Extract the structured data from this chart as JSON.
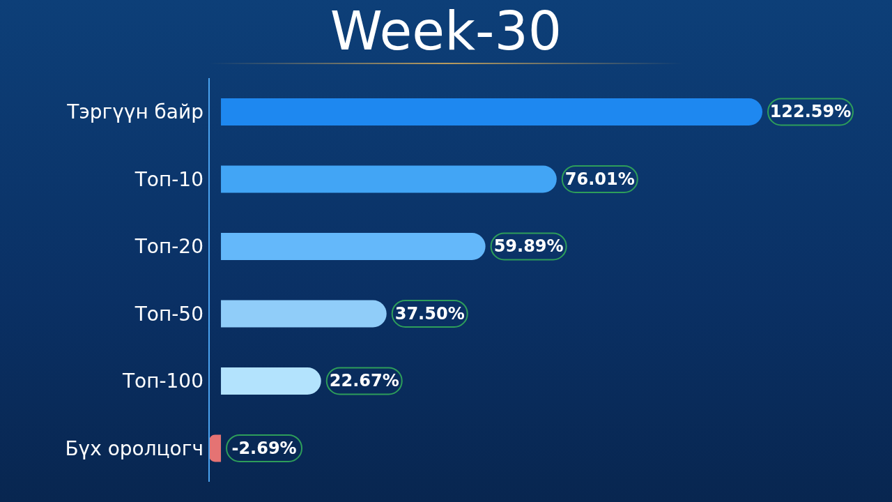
{
  "chart_data": {
    "type": "bar",
    "orientation": "horizontal",
    "title": "Week-30",
    "categories": [
      "Тэргүүн байр",
      "Топ-10",
      "Топ-20",
      "Топ-50",
      "Топ-100",
      "Бүх оролцогч"
    ],
    "values": [
      122.59,
      76.01,
      59.89,
      37.5,
      22.67,
      -2.69
    ],
    "colors": [
      "#1e88f0",
      "#42a5f5",
      "#64b8fa",
      "#90cdf9",
      "#b3e3fd",
      "#e57373"
    ],
    "value_labels": [
      "122.59%",
      "76.01%",
      "59.89%",
      "37.50%",
      "22.67%",
      "-2.69%"
    ],
    "tick_labels": "y"
  }
}
